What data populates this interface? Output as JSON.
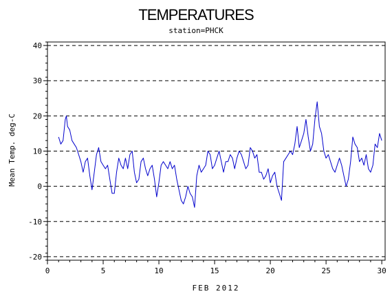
{
  "chart_data": {
    "type": "line",
    "title": "TEMPERATURES",
    "subtitle": "station=PHCK",
    "xlabel": "FEB 2012",
    "ylabel": "Mean Temp. deg-C",
    "xlim": [
      0,
      30.3
    ],
    "ylim": [
      -21,
      41
    ],
    "x_ticks": [
      0,
      5,
      10,
      15,
      20,
      25,
      30
    ],
    "y_ticks": [
      -20,
      -10,
      0,
      10,
      20,
      30,
      40
    ],
    "grid": "horizontal dashed at y ticks",
    "colors": {
      "line": "#0000cc",
      "axis": "#000000",
      "grid": "#000000"
    },
    "series": [
      {
        "x": [
          1.0,
          1.2,
          1.4,
          1.6,
          1.7,
          1.8,
          2.0,
          2.2,
          2.4,
          2.6,
          2.8,
          3.0,
          3.2,
          3.4,
          3.6,
          3.8,
          4.0,
          4.2,
          4.4,
          4.6,
          4.8,
          5.0,
          5.2,
          5.4,
          5.6,
          5.8,
          6.0,
          6.2,
          6.4,
          6.6,
          6.8,
          7.0,
          7.2,
          7.4,
          7.6,
          7.8,
          8.0,
          8.2,
          8.4,
          8.6,
          8.8,
          9.0,
          9.2,
          9.4,
          9.6,
          9.8,
          10.0,
          10.2,
          10.4,
          10.6,
          10.8,
          11.0,
          11.2,
          11.4,
          11.6,
          11.8,
          12.0,
          12.2,
          12.4,
          12.6,
          12.8,
          13.0,
          13.2,
          13.4,
          13.6,
          13.8,
          14.0,
          14.2,
          14.4,
          14.6,
          14.8,
          15.0,
          15.2,
          15.4,
          15.6,
          15.8,
          16.0,
          16.2,
          16.4,
          16.6,
          16.8,
          17.0,
          17.2,
          17.4,
          17.6,
          17.8,
          18.0,
          18.2,
          18.4,
          18.6,
          18.8,
          19.0,
          19.2,
          19.4,
          19.6,
          19.8,
          20.0,
          20.2,
          20.4,
          20.6,
          20.8,
          21.0,
          21.2,
          21.4,
          21.6,
          21.8,
          22.0,
          22.2,
          22.4,
          22.6,
          22.8,
          23.0,
          23.2,
          23.4,
          23.6,
          23.8,
          24.0,
          24.2,
          24.4,
          24.6,
          24.8,
          25.0,
          25.2,
          25.4,
          25.6,
          25.8,
          26.0,
          26.2,
          26.4,
          26.6,
          26.8,
          27.0,
          27.2,
          27.4,
          27.6,
          27.8,
          28.0,
          28.2,
          28.4,
          28.6,
          28.8,
          29.0,
          29.2,
          29.4,
          29.6,
          29.8,
          30.0
        ],
        "values": [
          14,
          12,
          13,
          19,
          20,
          17,
          16,
          13,
          12,
          11,
          9,
          7,
          4,
          7,
          8,
          3,
          -1,
          4,
          9,
          11,
          7,
          6,
          5,
          6,
          2,
          -2,
          -2,
          4,
          8,
          6,
          5,
          8,
          5,
          9,
          10,
          4,
          1,
          2,
          7,
          8,
          5,
          3,
          5,
          6,
          2,
          -3,
          1,
          6,
          7,
          6,
          5,
          7,
          5,
          6,
          2,
          -1,
          -4,
          -5,
          -3,
          0,
          -2,
          -3,
          -6,
          3,
          6,
          4,
          5,
          6,
          10,
          9,
          5,
          6,
          8,
          10,
          7,
          4,
          7,
          7,
          9,
          8,
          5,
          8,
          10,
          9,
          7,
          5,
          6,
          11,
          10,
          8,
          9,
          4,
          4,
          2,
          3,
          5,
          1,
          3,
          4,
          0,
          -2,
          -4,
          7,
          8,
          9,
          10,
          9,
          12,
          17,
          11,
          13,
          15,
          19,
          14,
          10,
          12,
          19,
          24,
          17,
          15,
          10,
          8,
          9,
          7,
          5,
          4,
          6,
          8,
          6,
          3,
          0,
          2,
          7,
          14,
          12,
          11,
          7,
          8,
          6,
          9,
          5,
          4,
          6,
          12,
          11,
          15,
          13
        ]
      }
    ]
  }
}
